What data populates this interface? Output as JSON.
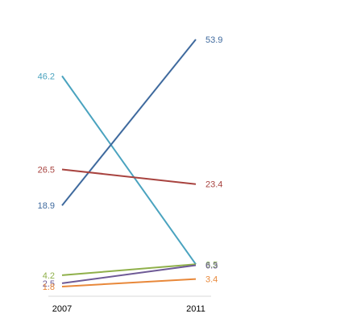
{
  "chart_data": {
    "type": "line",
    "x": [
      "2007",
      "2011"
    ],
    "ylim": [
      1.8,
      53.9
    ],
    "grid": false,
    "legend": "none",
    "series": [
      {
        "values": [
          46.2,
          6.5
        ],
        "color": "#4aa3bf",
        "labels": [
          "46.2",
          "6.5"
        ]
      },
      {
        "values": [
          18.9,
          53.9
        ],
        "color": "#3f6a9e",
        "labels": [
          "18.9",
          "53.9"
        ]
      },
      {
        "values": [
          26.5,
          23.4
        ],
        "color": "#a8433f",
        "labels": [
          "26.5",
          "23.4"
        ]
      },
      {
        "values": [
          4.2,
          6.5
        ],
        "color": "#8fb04a",
        "labels": [
          "4.2",
          "6.5"
        ]
      },
      {
        "values": [
          2.5,
          6.3
        ],
        "color": "#6e5a96",
        "labels": [
          "2.5",
          "6.3"
        ]
      },
      {
        "values": [
          1.8,
          3.4
        ],
        "color": "#e8883a",
        "labels": [
          "1.8",
          "3.4"
        ]
      }
    ]
  }
}
